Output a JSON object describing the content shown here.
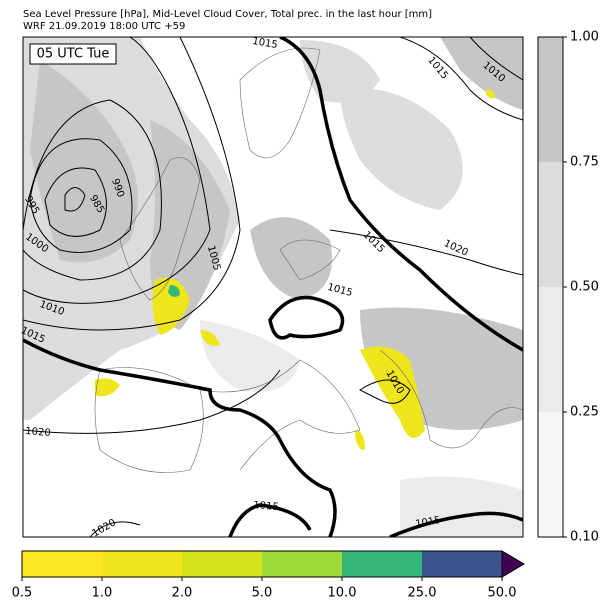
{
  "header": {
    "title": "Sea Level Pressure [hPa], Mid-Level Cloud Cover, Total prec. in the last hour [mm]",
    "subtitle": "WRF 21.09.2019 18:00 UTC +59"
  },
  "map": {
    "time_label": "05 UTC Tue",
    "isobar_labels": [
      1015,
      1015,
      1010,
      990,
      985,
      995,
      1000,
      1005,
      1015,
      1020,
      1015,
      1010,
      1015,
      1020,
      1010,
      1015,
      1015,
      1020
    ]
  },
  "cloud_colorbar": {
    "ticks": [
      {
        "value": 0.1,
        "label": "0.10"
      },
      0.25,
      {
        "value": 0.5,
        "label": "0.50"
      },
      0.75,
      {
        "value": 1.0,
        "label": "1.00"
      }
    ],
    "colors": [
      "#f7f7f7",
      "#ebebeb",
      "#dcdcdc",
      "#c6c6c6"
    ]
  },
  "precip_colorbar": {
    "ticks": [
      0.5,
      {
        "value": 1.0,
        "label": "1.0"
      },
      {
        "value": 2.0,
        "label": "2.0"
      },
      {
        "value": 5.0,
        "label": "5.0"
      },
      {
        "value": 10.0,
        "label": "10.0"
      },
      {
        "value": 25.0,
        "label": "25.0"
      },
      {
        "value": 50.0,
        "label": "50.0"
      }
    ],
    "colors": [
      "#fde725",
      "#eee51b",
      "#d4e21a",
      "#a0da39",
      "#35b779",
      "#3b528b"
    ],
    "extend_color": "#440154"
  }
}
